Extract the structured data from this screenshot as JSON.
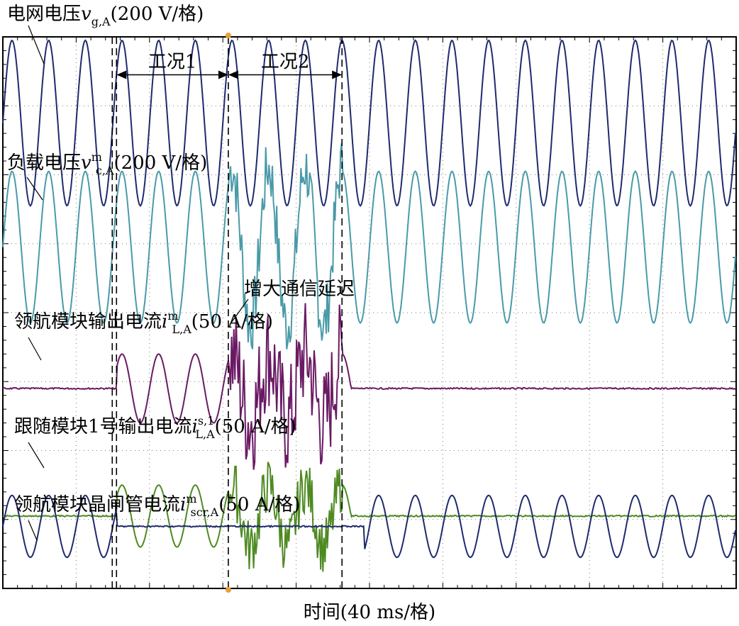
{
  "chart_data": {
    "type": "line",
    "x_axis": {
      "label": "时间(40 ms/格)",
      "divisions": 10,
      "ms_per_division": 40,
      "range_ms": [
        0,
        400
      ]
    },
    "y_axis": {
      "divisions": 8
    },
    "grid": "dotted",
    "events_ms": [
      62,
      123,
      185,
      197
    ],
    "intervals": [
      {
        "label": "工况1",
        "range_ms": [
          62,
          123
        ]
      },
      {
        "label": "工况2",
        "range_ms": [
          123,
          185
        ]
      }
    ],
    "annotation": "增大通信延迟",
    "series": [
      {
        "name": "电网电压",
        "symbol": "v",
        "sub": "g,A",
        "sup": "",
        "scale": "(200 V/格)",
        "color": "#1f2a6e",
        "amplitude_div": 1.2,
        "frequency_hz": 50
      },
      {
        "name": "负载电压",
        "symbol": "v",
        "sub": "c,A",
        "sup": "m",
        "scale": "(200 V/格)",
        "color": "#4a9aa8",
        "amplitude_div": 1.1,
        "frequency_hz": 50
      },
      {
        "name": "领航模块输出电流",
        "symbol": "i",
        "sub": "L,A",
        "sup": "m",
        "scale": "(50 A/格)",
        "color": "#6a1a64",
        "amplitude_div": 0.5,
        "frequency_hz": 50
      },
      {
        "name": "跟随模块1号输出电流",
        "symbol": "i",
        "sub": "L,A",
        "sup": "s,1",
        "scale": "(50 A/格)",
        "color": "#4e8a22",
        "amplitude_div": 0.45,
        "frequency_hz": 50
      },
      {
        "name": "领航模块晶闸管电流",
        "symbol": "i",
        "sub": "scr,A",
        "sup": "m",
        "scale": "(50 A/格)",
        "color": "#1f2a6e",
        "amplitude_div": 0.45,
        "frequency_hz": 50
      }
    ]
  }
}
